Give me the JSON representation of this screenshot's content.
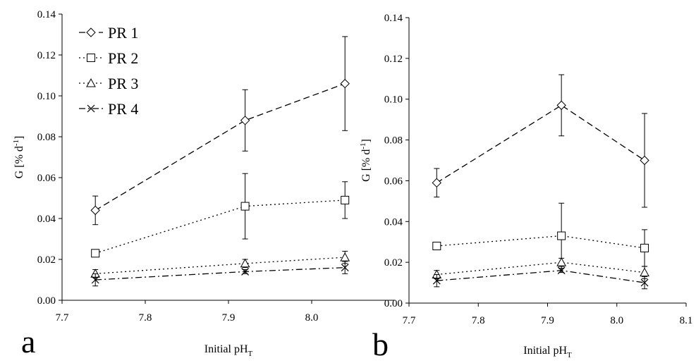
{
  "chart_data": [
    {
      "type": "line",
      "panel_label": "a",
      "xlabel": "Initial pH",
      "xlabel_sub": "T",
      "ylabel": "G [% d",
      "ylabel_sup": "-1",
      "ylabel_close": "]",
      "xlim": [
        7.7,
        8.1
      ],
      "ylim": [
        0.0,
        0.14
      ],
      "xticks": [
        "7.7",
        "7.8",
        "7.9",
        "8.0"
      ],
      "yticks": [
        "0.00",
        "0.02",
        "0.04",
        "0.06",
        "0.08",
        "0.10",
        "0.12",
        "0.14"
      ],
      "legend_position": "top-left",
      "series": [
        {
          "name": "PR 1",
          "marker": "diamond",
          "dash": "dash",
          "x": [
            7.74,
            7.92,
            8.04
          ],
          "y": [
            0.044,
            0.088,
            0.106
          ],
          "err": [
            0.007,
            0.015,
            0.023
          ]
        },
        {
          "name": "PR 2",
          "marker": "square",
          "dash": "dot",
          "x": [
            7.74,
            7.92,
            8.04
          ],
          "y": [
            0.023,
            0.046,
            0.049
          ],
          "err": [
            0.0,
            0.016,
            0.009
          ]
        },
        {
          "name": "PR 3",
          "marker": "triangle",
          "dash": "dot",
          "x": [
            7.74,
            7.92,
            8.04
          ],
          "y": [
            0.013,
            0.018,
            0.021
          ],
          "err": [
            0.002,
            0.002,
            0.003
          ]
        },
        {
          "name": "PR 4",
          "marker": "x",
          "dash": "dashdot",
          "x": [
            7.74,
            7.92,
            8.04
          ],
          "y": [
            0.01,
            0.014,
            0.016
          ],
          "err": [
            0.003,
            0.001,
            0.003
          ]
        }
      ]
    },
    {
      "type": "line",
      "panel_label": "b",
      "xlabel": "Initial pH",
      "xlabel_sub": "T",
      "ylabel": "G [% d",
      "ylabel_sup": "-1",
      "ylabel_close": "]",
      "xlim": [
        7.7,
        8.1
      ],
      "ylim": [
        0.0,
        0.14
      ],
      "xticks": [
        "7.7",
        "7.8",
        "7.9",
        "8.0",
        "8.1"
      ],
      "yticks": [
        "0.00",
        "0.02",
        "0.04",
        "0.06",
        "0.08",
        "0.10",
        "0.12",
        "0.14"
      ],
      "series": [
        {
          "name": "PR 1",
          "marker": "diamond",
          "dash": "dash",
          "x": [
            7.74,
            7.92,
            8.04
          ],
          "y": [
            0.059,
            0.097,
            0.07
          ],
          "err": [
            0.007,
            0.015,
            0.023
          ]
        },
        {
          "name": "PR 2",
          "marker": "square",
          "dash": "dot",
          "x": [
            7.74,
            7.92,
            8.04
          ],
          "y": [
            0.028,
            0.033,
            0.027
          ],
          "err": [
            0.0,
            0.016,
            0.009
          ]
        },
        {
          "name": "PR 3",
          "marker": "triangle",
          "dash": "dot",
          "x": [
            7.74,
            7.92,
            8.04
          ],
          "y": [
            0.014,
            0.02,
            0.015
          ],
          "err": [
            0.002,
            0.002,
            0.003
          ]
        },
        {
          "name": "PR 4",
          "marker": "x",
          "dash": "dashdot",
          "x": [
            7.74,
            7.92,
            8.04
          ],
          "y": [
            0.011,
            0.016,
            0.01
          ],
          "err": [
            0.003,
            0.001,
            0.003
          ]
        }
      ]
    }
  ]
}
